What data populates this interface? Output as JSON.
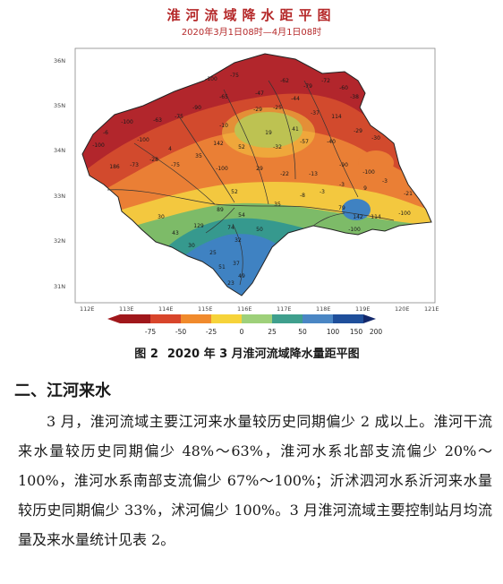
{
  "figure": {
    "title": "淮河流域降水距平图",
    "subtitle": "2020年3月1日08时—4月1日08时",
    "lat_ticks": [
      "36N",
      "35N",
      "34N",
      "33N",
      "32N",
      "31N"
    ],
    "lon_ticks": [
      "112E",
      "113E",
      "114E",
      "115E",
      "116E",
      "117E",
      "118E",
      "119E",
      "120E",
      "121E"
    ],
    "legend_ticks": [
      "-75",
      "-50",
      "-25",
      "0",
      "25",
      "50",
      "100",
      "150",
      "200"
    ],
    "legend_colors": [
      "#a0171b",
      "#d8452b",
      "#f08a2c",
      "#f6d33a",
      "#9ed07a",
      "#3f9f8d",
      "#4a86c4",
      "#1f4f9b",
      "#13286b"
    ],
    "palette": {
      "deep_red": "#b2262c",
      "red": "#d24a2d",
      "orange": "#ea7f35",
      "yellow": "#f3c83f",
      "green": "#7dbb68",
      "teal": "#36998e",
      "blue": "#3f82c2",
      "river": "#333333"
    },
    "station_values": [
      "-100",
      "-75",
      "-62",
      "-79",
      "-72",
      "-65",
      "-47",
      "-44",
      "-60",
      "-38",
      "-25",
      "-29",
      "-37",
      "-90",
      "-75",
      "-63",
      "-100",
      "-6",
      "-10",
      "114",
      "-29",
      "-30",
      "-40",
      "-57",
      "-32",
      "52",
      "19",
      "41",
      "-100",
      "4",
      "186",
      "-73",
      "-28",
      "-75",
      "35",
      "142",
      "-100",
      "-100",
      "29",
      "-22",
      "-13",
      "-90",
      "-100",
      "-3",
      "-21",
      "-100",
      "-3",
      "9",
      "-3",
      "-8",
      "52",
      "79",
      "142",
      "114",
      "-100",
      "35",
      "129",
      "89",
      "54",
      "74",
      "32",
      "50",
      "43",
      "30",
      "25",
      "51",
      "37",
      "49",
      "23",
      "30"
    ]
  },
  "caption": {
    "label": "图 2",
    "text": "2020 年 3 月淮河流域降水量距平图"
  },
  "section": {
    "heading": "二、江河来水"
  },
  "body": {
    "paragraph": "3 月，淮河流域主要江河来水量较历史同期偏少 2 成以上。淮河干流来水量较历史同期偏少 48%～63%，淮河水系北部支流偏少 20%～100%，淮河水系南部支流偏少 67%～100%；沂沭泗河水系沂河来水量较历史同期偏少 33%，沭河偏少 100%。3 月淮河流域主要控制站月均流量及来水量统计见表 2。"
  }
}
